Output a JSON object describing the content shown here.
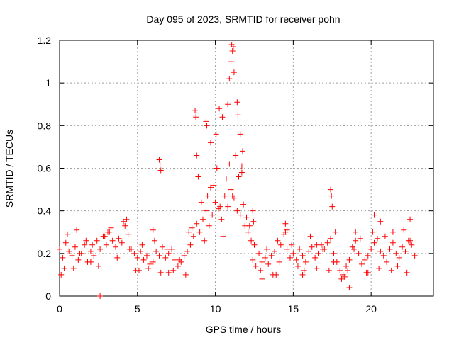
{
  "chart_data": {
    "type": "scatter",
    "title": "Day 095 of 2023, SRMTID for receiver pohn",
    "xlabel": "GPS time / hours",
    "ylabel": "SRMTID / TECUs",
    "xlim": [
      0,
      24
    ],
    "ylim": [
      0,
      1.2
    ],
    "x_ticks": [
      0,
      5,
      10,
      15,
      20
    ],
    "y_ticks": [
      0,
      0.2,
      0.4,
      0.6,
      0.8,
      1,
      1.2
    ],
    "x_tick_labels": [
      "0",
      "5",
      "10",
      "15",
      "20"
    ],
    "y_tick_labels": [
      "0",
      "0.2",
      "0.4",
      "0.6",
      "0.8",
      "1",
      "1.2"
    ],
    "grid": true,
    "marker": "+",
    "color": "#ff0000",
    "series": [
      {
        "name": "SRMTID",
        "x": [
          0.0,
          0.2,
          0.4,
          0.6,
          0.8,
          1.0,
          1.2,
          1.4,
          1.6,
          1.8,
          2.0,
          2.2,
          2.4,
          2.6,
          2.8,
          3.0,
          3.2,
          3.4,
          3.6,
          3.8,
          4.0,
          4.2,
          4.4,
          4.6,
          4.8,
          5.0,
          5.2,
          5.4,
          5.6,
          5.8,
          6.0,
          6.2,
          6.4,
          6.6,
          6.8,
          7.0,
          7.2,
          7.4,
          7.6,
          7.8,
          8.0,
          8.2,
          8.4,
          8.6,
          8.8,
          9.0,
          9.2,
          9.4,
          9.6,
          9.8,
          10.0,
          10.2,
          10.4,
          10.6,
          10.8,
          11.0,
          11.2,
          11.4,
          11.6,
          11.8,
          12.0,
          12.2,
          12.4,
          12.6,
          12.8,
          13.0,
          13.2,
          13.4,
          13.6,
          13.8,
          14.0,
          14.2,
          14.4,
          14.6,
          14.8,
          15.0,
          15.2,
          15.4,
          15.6,
          15.8,
          16.0,
          16.2,
          16.4,
          16.6,
          16.8,
          17.0,
          17.2,
          17.4,
          17.6,
          17.8,
          18.0,
          18.2,
          18.4,
          18.6,
          18.8,
          19.0,
          19.2,
          19.4,
          19.6,
          19.8,
          20.0,
          20.2,
          20.4,
          20.6,
          20.8,
          21.0,
          21.2,
          21.4,
          21.6,
          21.8,
          22.0,
          22.2,
          22.4,
          22.6,
          22.8,
          0.1,
          0.5,
          0.9,
          1.3,
          1.7,
          2.1,
          2.5,
          2.9,
          3.3,
          3.7,
          4.1,
          4.5,
          4.9,
          5.3,
          5.7,
          6.1,
          6.5,
          6.9,
          7.3,
          7.7,
          8.1,
          8.5,
          8.9,
          9.3,
          9.7,
          10.1,
          10.5,
          10.9,
          11.3,
          11.7,
          12.1,
          12.5,
          12.9,
          13.3,
          13.7,
          14.1,
          14.5,
          14.9,
          15.3,
          15.7,
          16.1,
          16.5,
          16.9,
          17.3,
          17.7,
          18.1,
          18.5,
          18.9,
          19.3,
          19.7,
          20.1,
          20.5,
          20.9,
          21.3,
          21.7,
          22.1,
          22.5,
          0.3,
          1.1,
          2.0,
          3.1,
          4.3,
          5.1,
          6.0,
          7.0,
          8.3,
          9.1,
          9.5,
          9.9,
          10.3,
          10.7,
          11.1,
          11.5,
          11.9,
          12.3,
          13.0,
          13.9,
          14.6,
          15.6,
          16.5,
          17.6,
          18.3,
          19.0,
          19.8,
          20.6,
          21.4,
          22.3,
          2.6,
          6.4,
          6.45,
          6.5,
          8.7,
          8.75,
          8.8,
          9.4,
          9.45,
          9.7,
          10.05,
          10.25,
          10.45,
          10.8,
          10.9,
          11.0,
          11.05,
          11.1,
          11.15,
          11.2,
          11.4,
          11.45,
          11.6,
          11.7,
          11.75,
          17.4,
          17.45,
          17.5,
          18.6,
          20.2,
          12.4,
          12.45,
          14.5,
          22.5
        ],
        "y": [
          0.22,
          0.18,
          0.25,
          0.21,
          0.19,
          0.23,
          0.17,
          0.2,
          0.24,
          0.16,
          0.21,
          0.19,
          0.26,
          0.22,
          0.28,
          0.24,
          0.3,
          0.26,
          0.23,
          0.27,
          0.25,
          0.33,
          0.29,
          0.22,
          0.2,
          0.18,
          0.21,
          0.17,
          0.19,
          0.15,
          0.16,
          0.21,
          0.19,
          0.23,
          0.18,
          0.2,
          0.22,
          0.17,
          0.14,
          0.16,
          0.19,
          0.21,
          0.24,
          0.28,
          0.34,
          0.3,
          0.36,
          0.4,
          0.33,
          0.38,
          0.44,
          0.41,
          0.36,
          0.47,
          0.42,
          0.5,
          0.46,
          0.4,
          0.38,
          0.43,
          0.37,
          0.33,
          0.17,
          0.14,
          0.2,
          0.16,
          0.18,
          0.15,
          0.19,
          0.21,
          0.26,
          0.24,
          0.29,
          0.22,
          0.18,
          0.2,
          0.17,
          0.22,
          0.19,
          0.16,
          0.21,
          0.23,
          0.18,
          0.2,
          0.24,
          0.22,
          0.25,
          0.27,
          0.2,
          0.16,
          0.12,
          0.1,
          0.14,
          0.17,
          0.23,
          0.26,
          0.2,
          0.15,
          0.17,
          0.19,
          0.22,
          0.25,
          0.27,
          0.21,
          0.19,
          0.16,
          0.22,
          0.25,
          0.2,
          0.18,
          0.23,
          0.21,
          0.26,
          0.24,
          0.19,
          0.1,
          0.29,
          0.13,
          0.2,
          0.26,
          0.24,
          0.14,
          0.28,
          0.32,
          0.18,
          0.35,
          0.22,
          0.12,
          0.24,
          0.13,
          0.26,
          0.11,
          0.22,
          0.12,
          0.17,
          0.1,
          0.32,
          0.56,
          0.26,
          0.51,
          0.6,
          0.28,
          0.62,
          0.66,
          0.58,
          0.3,
          0.24,
          0.12,
          0.22,
          0.1,
          0.16,
          0.3,
          0.24,
          0.14,
          0.12,
          0.28,
          0.13,
          0.22,
          0.12,
          0.3,
          0.08,
          0.12,
          0.22,
          0.27,
          0.11,
          0.3,
          0.13,
          0.28,
          0.12,
          0.14,
          0.31,
          0.26,
          0.13,
          0.31,
          0.16,
          0.3,
          0.36,
          0.12,
          0.31,
          0.11,
          0.3,
          0.44,
          0.47,
          0.52,
          0.42,
          0.55,
          0.47,
          0.56,
          0.33,
          0.26,
          0.08,
          0.1,
          0.31,
          0.1,
          0.24,
          0.16,
          0.09,
          0.3,
          0.11,
          0.35,
          0.3,
          0.11,
          0.0,
          0.64,
          0.62,
          0.59,
          0.87,
          0.84,
          0.66,
          0.82,
          0.8,
          0.72,
          0.76,
          0.88,
          0.84,
          0.9,
          1.02,
          1.1,
          1.18,
          1.15,
          1.17,
          1.05,
          0.91,
          0.85,
          0.76,
          0.61,
          0.68,
          0.5,
          0.47,
          0.42,
          0.04,
          0.38,
          0.4,
          0.35,
          0.34,
          0.36
        ]
      }
    ]
  }
}
